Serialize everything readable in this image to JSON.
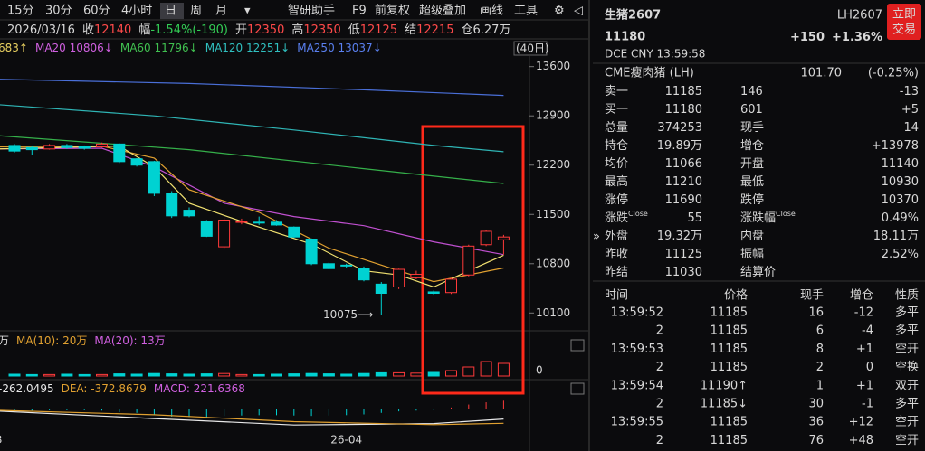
{
  "toolbar": {
    "periods": [
      "15分",
      "30分",
      "60分",
      "4小时",
      "日",
      "周",
      "月"
    ],
    "selected": 4,
    "tools": [
      "智研助手",
      "F9",
      "前复权",
      "超级叠加",
      "画线",
      "工具"
    ]
  },
  "info": {
    "date": "2026/03/16",
    "items": [
      {
        "label": "收",
        "value": "12140",
        "color": "#ff4a4a"
      },
      {
        "label": "幅",
        "value": "-1.54%(-190)",
        "color": "#33cc55"
      },
      {
        "label": "开",
        "value": "12350",
        "color": "#ff4a4a"
      },
      {
        "label": "高",
        "value": "12350",
        "color": "#ff4a4a"
      },
      {
        "label": "低",
        "value": "12125",
        "color": "#ff4a4a"
      },
      {
        "label": "结",
        "value": "12215",
        "color": "#ff4a4a"
      },
      {
        "label": "仓",
        "value": "6.27万",
        "color": "#d8d8d8"
      }
    ]
  },
  "ma_legend": [
    {
      "text": "683↑",
      "color": "#e8d060"
    },
    {
      "text": "MA20 10806↓",
      "color": "#d060e0"
    },
    {
      "text": "MA60 11796↓",
      "color": "#40c050"
    },
    {
      "text": "MA120 12251↓",
      "color": "#30c0c0"
    },
    {
      "text": "MA250 13037↓",
      "color": "#5a80f0"
    }
  ],
  "range_label": "(40日)",
  "chart_data": {
    "type": "candlestick",
    "annotation": "10075⟶",
    "ylim": [
      9860,
      13750
    ],
    "yticks": [
      10100,
      10800,
      11500,
      12200,
      12900,
      13600
    ],
    "xlabels": [
      {
        "index": -0.9,
        "label": "3"
      },
      {
        "index": 19,
        "label": "26-04"
      }
    ],
    "up_color": "#ff3a3a",
    "down_color": "#00d2d2",
    "candles": [
      [
        12480,
        12500,
        12380,
        12400
      ],
      [
        12450,
        12470,
        12350,
        12420
      ],
      [
        12430,
        12500,
        12420,
        12480
      ],
      [
        12480,
        12500,
        12430,
        12450
      ],
      [
        12460,
        12480,
        12420,
        12440
      ],
      [
        12460,
        12520,
        12450,
        12500
      ],
      [
        12500,
        12510,
        12230,
        12250
      ],
      [
        12290,
        12300,
        12180,
        12200
      ],
      [
        12250,
        12260,
        11760,
        11800
      ],
      [
        11800,
        11830,
        11450,
        11480
      ],
      [
        11560,
        11600,
        11460,
        11480
      ],
      [
        11400,
        11420,
        11180,
        11190
      ],
      [
        11040,
        11450,
        11020,
        11420
      ],
      [
        11400,
        11440,
        11360,
        11400
      ],
      [
        11390,
        11470,
        11350,
        11380
      ],
      [
        11390,
        11420,
        11340,
        11350
      ],
      [
        11320,
        11330,
        11170,
        11180
      ],
      [
        11150,
        11160,
        10780,
        10800
      ],
      [
        10800,
        10820,
        10720,
        10730
      ],
      [
        10780,
        10800,
        10740,
        10770
      ],
      [
        10730,
        10760,
        10550,
        10570
      ],
      [
        10510,
        10540,
        10075,
        10380
      ],
      [
        10470,
        10730,
        10440,
        10720
      ],
      [
        10600,
        10700,
        10580,
        10650
      ],
      [
        10400,
        10420,
        10360,
        10380
      ],
      [
        10390,
        10600,
        10370,
        10580
      ],
      [
        10640,
        11070,
        10620,
        11050
      ],
      [
        11070,
        11280,
        11050,
        11260
      ],
      [
        11140,
        11210,
        10930,
        11180
      ]
    ],
    "lines": [
      {
        "color": "#4a6fd8",
        "x": [
          -1,
          10,
          20,
          28
        ],
        "values": [
          13420,
          13360,
          13270,
          13190
        ]
      },
      {
        "color": "#2fb5b5",
        "x": [
          -1,
          8,
          16,
          24,
          28
        ],
        "values": [
          13060,
          12900,
          12700,
          12480,
          12390
        ]
      },
      {
        "color": "#35b04a",
        "x": [
          -1,
          10,
          20,
          28
        ],
        "values": [
          12620,
          12420,
          12150,
          11940
        ]
      },
      {
        "color": "#c050d0",
        "x": [
          -1,
          5,
          8,
          12,
          16,
          20,
          24,
          28
        ],
        "values": [
          12430,
          12440,
          12175,
          11660,
          11470,
          11340,
          11110,
          10930
        ]
      },
      {
        "color": "#e0a030",
        "x": [
          -1,
          5,
          8,
          10,
          14,
          18,
          22,
          24,
          28
        ],
        "values": [
          12460,
          12470,
          12300,
          11850,
          11530,
          11020,
          10700,
          10545,
          10740
        ]
      },
      {
        "color": "#f0e070",
        "x": [
          -1,
          6,
          8,
          10,
          13,
          17,
          20,
          22,
          24,
          26,
          28
        ],
        "values": [
          12430,
          12470,
          12175,
          11660,
          11400,
          11080,
          10700,
          10640,
          10470,
          10700,
          10920
        ]
      }
    ],
    "volume": {
      "legend": [
        {
          "text": "万",
          "color": "#d8d8d8"
        },
        {
          "text": "MA(10): 20万",
          "color": "#e0a030"
        },
        {
          "text": "MA(20): 13万",
          "color": "#d060e0"
        }
      ],
      "ylim": [
        0,
        70
      ],
      "yticks": [
        0
      ],
      "values": [
        5,
        4,
        4,
        5,
        4,
        4,
        6,
        5,
        7,
        6,
        5,
        6,
        7,
        4,
        4,
        5,
        6,
        7,
        6,
        5,
        7,
        9,
        9,
        8,
        10,
        15,
        25,
        40,
        35
      ]
    },
    "macd": {
      "legend": [
        {
          "text": "-262.0495",
          "color": "#e8e8e8"
        },
        {
          "text": "DEA: -372.8679",
          "color": "#e0a030"
        },
        {
          "text": "MACD: 221.6368",
          "color": "#d060e0"
        }
      ],
      "ylim": [
        -700,
        300
      ],
      "dif": {
        "color": "#e8e8e8",
        "x": [
          -1,
          8,
          16,
          24,
          28
        ],
        "values": [
          -50,
          -250,
          -420,
          -380,
          -262.0495
        ]
      },
      "dea": {
        "color": "#e0a030",
        "x": [
          -1,
          8,
          16,
          24,
          28
        ],
        "values": [
          -30,
          -150,
          -330,
          -410,
          -372.8679
        ]
      },
      "hist": [
        -40,
        -40,
        -30,
        -30,
        -30,
        -40,
        -80,
        -100,
        -160,
        -200,
        -210,
        -220,
        -180,
        -170,
        -160,
        -160,
        -170,
        -180,
        -170,
        -160,
        -140,
        -100,
        -60,
        -40,
        -20,
        40,
        120,
        180,
        221.6368
      ]
    }
  },
  "quote": {
    "name": "生猪2607",
    "price": "11180",
    "code": "LH2607",
    "change": "+150",
    "pct": "+1.36%",
    "button": [
      "立即",
      "交易"
    ],
    "meta": "DCE  CNY  13:59:58",
    "ref": {
      "label": "CME瘦肉猪 (LH)",
      "value": "101.70",
      "pct": "(-0.25%)"
    },
    "rows": [
      [
        {
          "t": "卖一"
        },
        {
          "t": "11185",
          "c": "#ff4a4a"
        },
        {
          "t": "146"
        },
        {
          "t": "-13",
          "c": "#33cc55"
        }
      ],
      [
        {
          "t": "买一"
        },
        {
          "t": "11180",
          "c": "#ff4a4a"
        },
        {
          "t": "601"
        },
        {
          "t": "+5",
          "c": "#ff4a4a"
        }
      ],
      [
        {
          "t": "总量"
        },
        {
          "t": "374253"
        },
        {
          "t": "现手"
        },
        {
          "t": "14"
        }
      ],
      [
        {
          "t": "持仓"
        },
        {
          "t": "19.89万"
        },
        {
          "t": "增仓"
        },
        {
          "t": "+13978",
          "c": "#ff4a4a"
        }
      ],
      [
        {
          "t": "均价"
        },
        {
          "t": "11066",
          "c": "#ff4a4a"
        },
        {
          "t": "开盘"
        },
        {
          "t": "11140",
          "c": "#ff4a4a"
        }
      ],
      [
        {
          "t": "最高"
        },
        {
          "t": "11210",
          "c": "#ff4a4a"
        },
        {
          "t": "最低"
        },
        {
          "t": "10930",
          "c": "#33cc55"
        }
      ],
      [
        {
          "t": "涨停"
        },
        {
          "t": "11690",
          "c": "#ff4a4a"
        },
        {
          "t": "跌停"
        },
        {
          "t": "10370",
          "c": "#33cc55"
        }
      ],
      [
        {
          "t": "涨跌",
          "sup": "Close"
        },
        {
          "t": "55",
          "c": "#ff4a4a"
        },
        {
          "t": "涨跌幅",
          "sup": "Close"
        },
        {
          "t": "0.49%",
          "c": "#ff4a4a"
        }
      ],
      [
        {
          "t": "外盘"
        },
        {
          "t": "19.32万",
          "c": "#ff4a4a"
        },
        {
          "t": "内盘"
        },
        {
          "t": "18.11万",
          "c": "#33cc55"
        }
      ],
      [
        {
          "t": "昨收"
        },
        {
          "t": "11125"
        },
        {
          "t": "振幅"
        },
        {
          "t": "2.52%"
        }
      ],
      [
        {
          "t": "昨结"
        },
        {
          "t": "11030"
        },
        {
          "t": "结算价"
        }
      ]
    ]
  },
  "trades": {
    "header": [
      "时间",
      "价格",
      "现手",
      "增仓",
      "性质"
    ],
    "rows": [
      [
        {
          "t": "13:59:52"
        },
        {
          "t": "11185",
          "c": "#ff4a4a"
        },
        {
          "t": "16",
          "c": "#33cc55"
        },
        {
          "t": "-12",
          "c": "#33cc55"
        },
        {
          "t": "多平",
          "c": "#33cc55"
        }
      ],
      [
        {
          "t": "2"
        },
        {
          "t": "11185",
          "c": "#ff4a4a"
        },
        {
          "t": "6",
          "c": "#33cc55"
        },
        {
          "t": "-4",
          "c": "#33cc55"
        },
        {
          "t": "多平",
          "c": "#33cc55"
        }
      ],
      [
        {
          "t": "13:59:53"
        },
        {
          "t": "11185",
          "c": "#ff4a4a"
        },
        {
          "t": "8",
          "c": "#33cc55"
        },
        {
          "t": "+1",
          "c": "#ff4a4a"
        },
        {
          "t": "空开",
          "c": "#33cc55"
        }
      ],
      [
        {
          "t": "2"
        },
        {
          "t": "11185",
          "c": "#ff4a4a"
        },
        {
          "t": "2",
          "c": "#33cc55"
        },
        {
          "t": "0"
        },
        {
          "t": "空换",
          "c": "#33cc55"
        }
      ],
      [
        {
          "t": "13:59:54"
        },
        {
          "t": "11190↑",
          "c": "#ff4a4a"
        },
        {
          "t": "1",
          "c": "#ff4a4a"
        },
        {
          "t": "+1",
          "c": "#ff4a4a"
        },
        {
          "t": "双开"
        }
      ],
      [
        {
          "t": "2"
        },
        {
          "t": "11185↓",
          "c": "#ff4a4a"
        },
        {
          "t": "30",
          "c": "#33cc55"
        },
        {
          "t": "-1",
          "c": "#33cc55"
        },
        {
          "t": "多平",
          "c": "#33cc55"
        }
      ],
      [
        {
          "t": "13:59:55"
        },
        {
          "t": "11185",
          "c": "#ff4a4a"
        },
        {
          "t": "36",
          "c": "#33cc55"
        },
        {
          "t": "+12",
          "c": "#ff4a4a"
        },
        {
          "t": "空开",
          "c": "#33cc55"
        }
      ],
      [
        {
          "t": "2"
        },
        {
          "t": "11185",
          "c": "#ff4a4a"
        },
        {
          "t": "76",
          "c": "#33cc55"
        },
        {
          "t": "+48",
          "c": "#ff4a4a"
        },
        {
          "t": "空开",
          "c": "#33cc55"
        }
      ]
    ]
  }
}
